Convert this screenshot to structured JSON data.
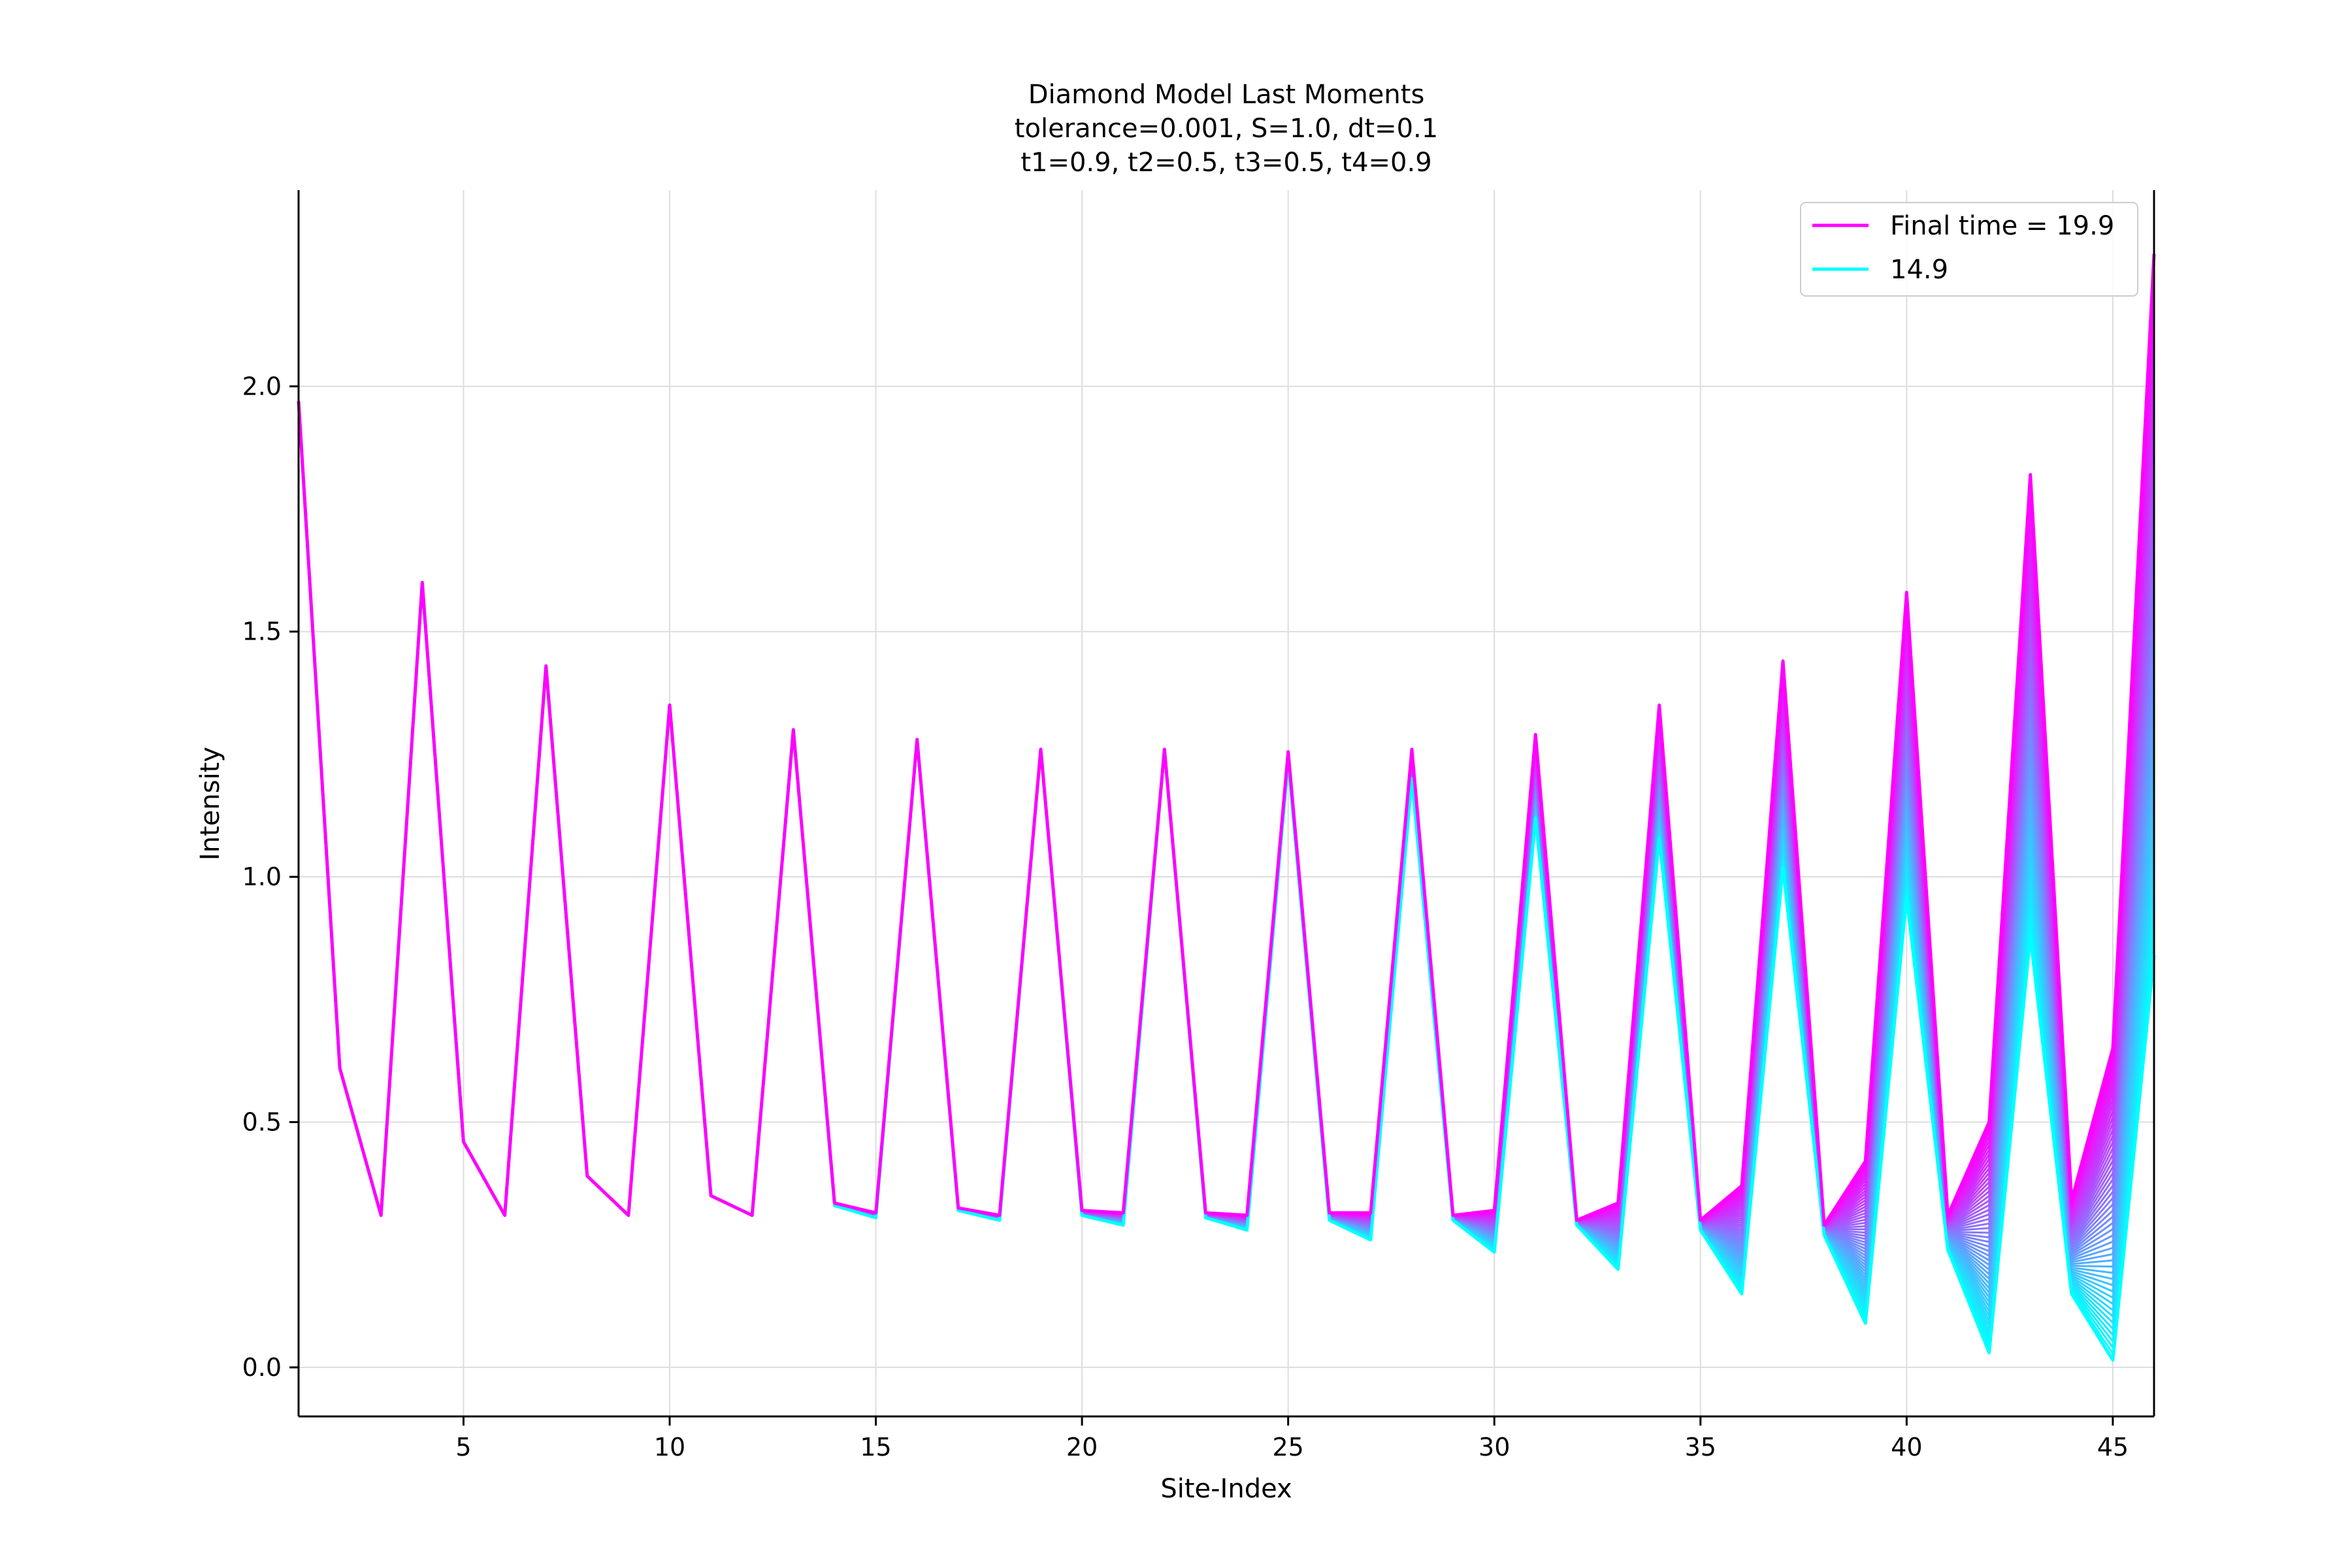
{
  "chart_data": {
    "type": "line",
    "title_lines": [
      "Diamond Model Last Moments",
      "tolerance=0.001, S=1.0, dt=0.1",
      "t1=0.9, t2=0.5, t3=0.5, t4=0.9"
    ],
    "xlabel": "Site-Index",
    "ylabel": "Intensity",
    "xlim": [
      1,
      46
    ],
    "ylim": [
      -0.1,
      2.4
    ],
    "xticks": [
      5,
      10,
      15,
      20,
      25,
      30,
      35,
      40,
      45
    ],
    "yticks": [
      0.0,
      0.5,
      1.0,
      1.5,
      2.0
    ],
    "xtick_labels": [
      "5",
      "10",
      "15",
      "20",
      "25",
      "30",
      "35",
      "40",
      "45"
    ],
    "ytick_labels": [
      "0.0",
      "0.5",
      "1.0",
      "1.5",
      "2.0"
    ],
    "grid": true,
    "legend_position": "top-right",
    "num_intermediate_curves": 50,
    "colors": {
      "final": "#ff00ff",
      "initial": "#00ffff"
    },
    "x": [
      1,
      2,
      3,
      4,
      5,
      6,
      7,
      8,
      9,
      10,
      11,
      12,
      13,
      14,
      15,
      16,
      17,
      18,
      19,
      20,
      21,
      22,
      23,
      24,
      25,
      26,
      27,
      28,
      29,
      30,
      31,
      32,
      33,
      34,
      35,
      36,
      37,
      38,
      39,
      40,
      41,
      42,
      43,
      44,
      45,
      46
    ],
    "series": [
      {
        "name": "Final time = 19.9",
        "color": "#ff00ff",
        "values": [
          1.97,
          0.61,
          0.31,
          1.6,
          0.46,
          0.31,
          1.43,
          0.39,
          0.31,
          1.35,
          0.35,
          0.31,
          1.3,
          0.335,
          0.315,
          1.28,
          0.325,
          0.31,
          1.26,
          0.32,
          0.315,
          1.26,
          0.315,
          0.31,
          1.255,
          0.315,
          0.315,
          1.26,
          0.31,
          0.32,
          1.29,
          0.3,
          0.335,
          1.35,
          0.3,
          0.37,
          1.44,
          0.29,
          0.42,
          1.58,
          0.31,
          0.5,
          1.82,
          0.34,
          0.65,
          2.27
        ]
      },
      {
        "name": "14.9",
        "color": "#00ffff",
        "values": [
          1.97,
          0.61,
          0.31,
          1.6,
          0.46,
          0.31,
          1.43,
          0.39,
          0.31,
          1.35,
          0.35,
          0.31,
          1.3,
          0.33,
          0.305,
          1.28,
          0.32,
          0.3,
          1.26,
          0.31,
          0.29,
          1.26,
          0.305,
          0.28,
          1.24,
          0.3,
          0.26,
          1.2,
          0.3,
          0.235,
          1.12,
          0.29,
          0.2,
          1.08,
          0.28,
          0.15,
          1.02,
          0.27,
          0.09,
          0.96,
          0.24,
          0.03,
          0.88,
          0.15,
          0.015,
          0.84
        ]
      }
    ]
  }
}
